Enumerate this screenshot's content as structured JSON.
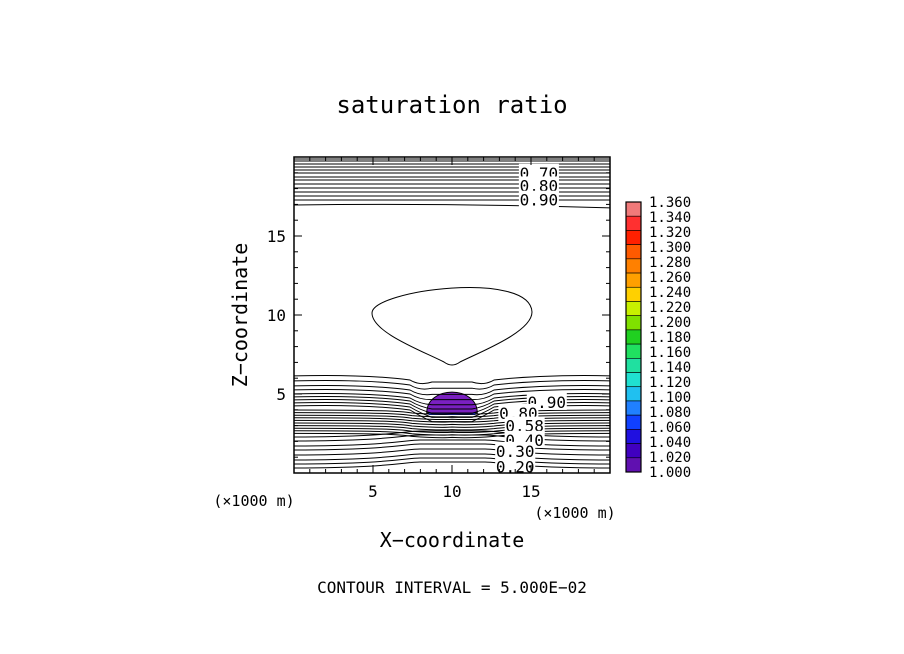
{
  "chart_data": {
    "type": "contour",
    "title": "saturation ratio",
    "xlabel": "X−coordinate",
    "ylabel": "Z−coordinate",
    "x_unit_label": "(×1000 m)",
    "z_unit_label": "(×1000 m)",
    "xlim": [
      0,
      20
    ],
    "ylim": [
      0,
      20
    ],
    "x_ticks": [
      "5",
      "10",
      "15"
    ],
    "y_ticks": [
      "5",
      "10",
      "15"
    ],
    "footer": "CONTOUR INTERVAL = 5.000E−02",
    "contour_labels": [
      {
        "text": "0.70",
        "x": 15.5,
        "z": 19.0
      },
      {
        "text": "0.80",
        "x": 15.5,
        "z": 18.2
      },
      {
        "text": "0.90",
        "x": 15.5,
        "z": 17.3
      },
      {
        "text": "0.90",
        "x": 16.0,
        "z": 4.5
      },
      {
        "text": "0.80",
        "x": 14.2,
        "z": 3.8
      },
      {
        "text": "0.58",
        "x": 14.6,
        "z": 3.0
      },
      {
        "text": "0.40",
        "x": 14.6,
        "z": 2.1
      },
      {
        "text": "0.30",
        "x": 14.0,
        "z": 1.4
      },
      {
        "text": "0.20",
        "x": 14.0,
        "z": 0.4
      }
    ],
    "colorbar": {
      "min": 1.0,
      "max": 1.36,
      "labels": [
        "1.360",
        "1.340",
        "1.320",
        "1.300",
        "1.280",
        "1.260",
        "1.240",
        "1.220",
        "1.200",
        "1.180",
        "1.160",
        "1.140",
        "1.120",
        "1.100",
        "1.080",
        "1.060",
        "1.040",
        "1.020",
        "1.000"
      ],
      "colors": [
        "#f07a7a",
        "#ff3030",
        "#ff2000",
        "#ff5a00",
        "#ff8000",
        "#ffa000",
        "#ffd000",
        "#c8f000",
        "#80e000",
        "#20d020",
        "#20e060",
        "#20e0a0",
        "#20e0d0",
        "#20c0f0",
        "#2080ff",
        "#1040ff",
        "#2010e0",
        "#4000c0",
        "#6010b0"
      ]
    },
    "supersaturated_region": {
      "x_center": 10.0,
      "z_top": 5.3,
      "z_base": 3.8,
      "half_width": 1.6,
      "color": "#7a20c0"
    }
  }
}
